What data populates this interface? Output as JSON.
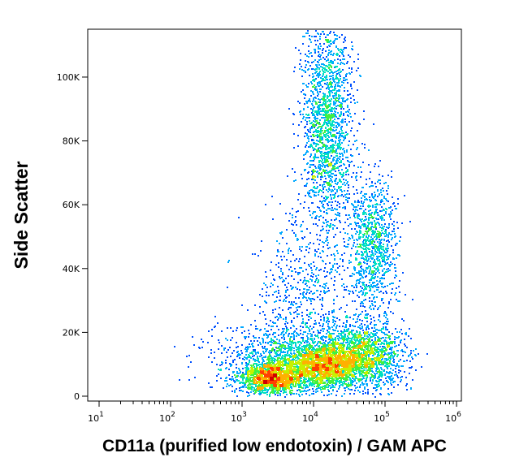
{
  "chart_data": {
    "type": "scatter",
    "style": "flow-cytometry pseudocolor density dot plot",
    "xlabel": "CD11a (purified low endotoxin) / GAM APC",
    "ylabel": "Side Scatter",
    "x_scale": "log",
    "xlim": [
      10,
      1000000
    ],
    "ylim": [
      0,
      115000
    ],
    "x_ticks": [
      {
        "value": 10,
        "base": "10",
        "exp": "1"
      },
      {
        "value": 100,
        "base": "10",
        "exp": "2"
      },
      {
        "value": 1000,
        "base": "10",
        "exp": "3"
      },
      {
        "value": 10000,
        "base": "10",
        "exp": "4"
      },
      {
        "value": 100000,
        "base": "10",
        "exp": "5"
      },
      {
        "value": 1000000,
        "base": "10",
        "exp": "6"
      }
    ],
    "y_ticks": [
      {
        "value": 0,
        "label": "0"
      },
      {
        "value": 20000,
        "label": "20K"
      },
      {
        "value": 40000,
        "label": "40K"
      },
      {
        "value": 60000,
        "label": "60K"
      },
      {
        "value": 80000,
        "label": "80K"
      },
      {
        "value": 100000,
        "label": "100K"
      }
    ],
    "populations": [
      {
        "x_center": 2500,
        "y_center": 6000,
        "x_spread_log": 0.22,
        "y_spread": 2500,
        "weight": 0.14
      },
      {
        "x_center": 12000,
        "y_center": 9500,
        "x_spread_log": 0.28,
        "y_spread": 3500,
        "weight": 0.18
      },
      {
        "x_center": 45000,
        "y_center": 13000,
        "x_spread_log": 0.3,
        "y_spread": 5000,
        "weight": 0.2
      },
      {
        "x_center": 15000,
        "y_center": 85000,
        "x_spread_log": 0.18,
        "y_spread": 17000,
        "weight": 0.2
      },
      {
        "x_center": 65000,
        "y_center": 48000,
        "x_spread_log": 0.17,
        "y_spread": 10000,
        "weight": 0.11
      },
      {
        "x_center": 7000,
        "y_center": 30000,
        "x_spread_log": 0.35,
        "y_spread": 14000,
        "weight": 0.07
      },
      {
        "x_center": 3000,
        "y_center": 12000,
        "x_spread_log": 0.5,
        "y_spread": 6000,
        "weight": 0.1
      }
    ],
    "density_colors": [
      "#0000c8",
      "#0050ff",
      "#00a8ff",
      "#00e0c0",
      "#40f040",
      "#c8f000",
      "#ffb000",
      "#ff4000",
      "#d00000"
    ]
  }
}
